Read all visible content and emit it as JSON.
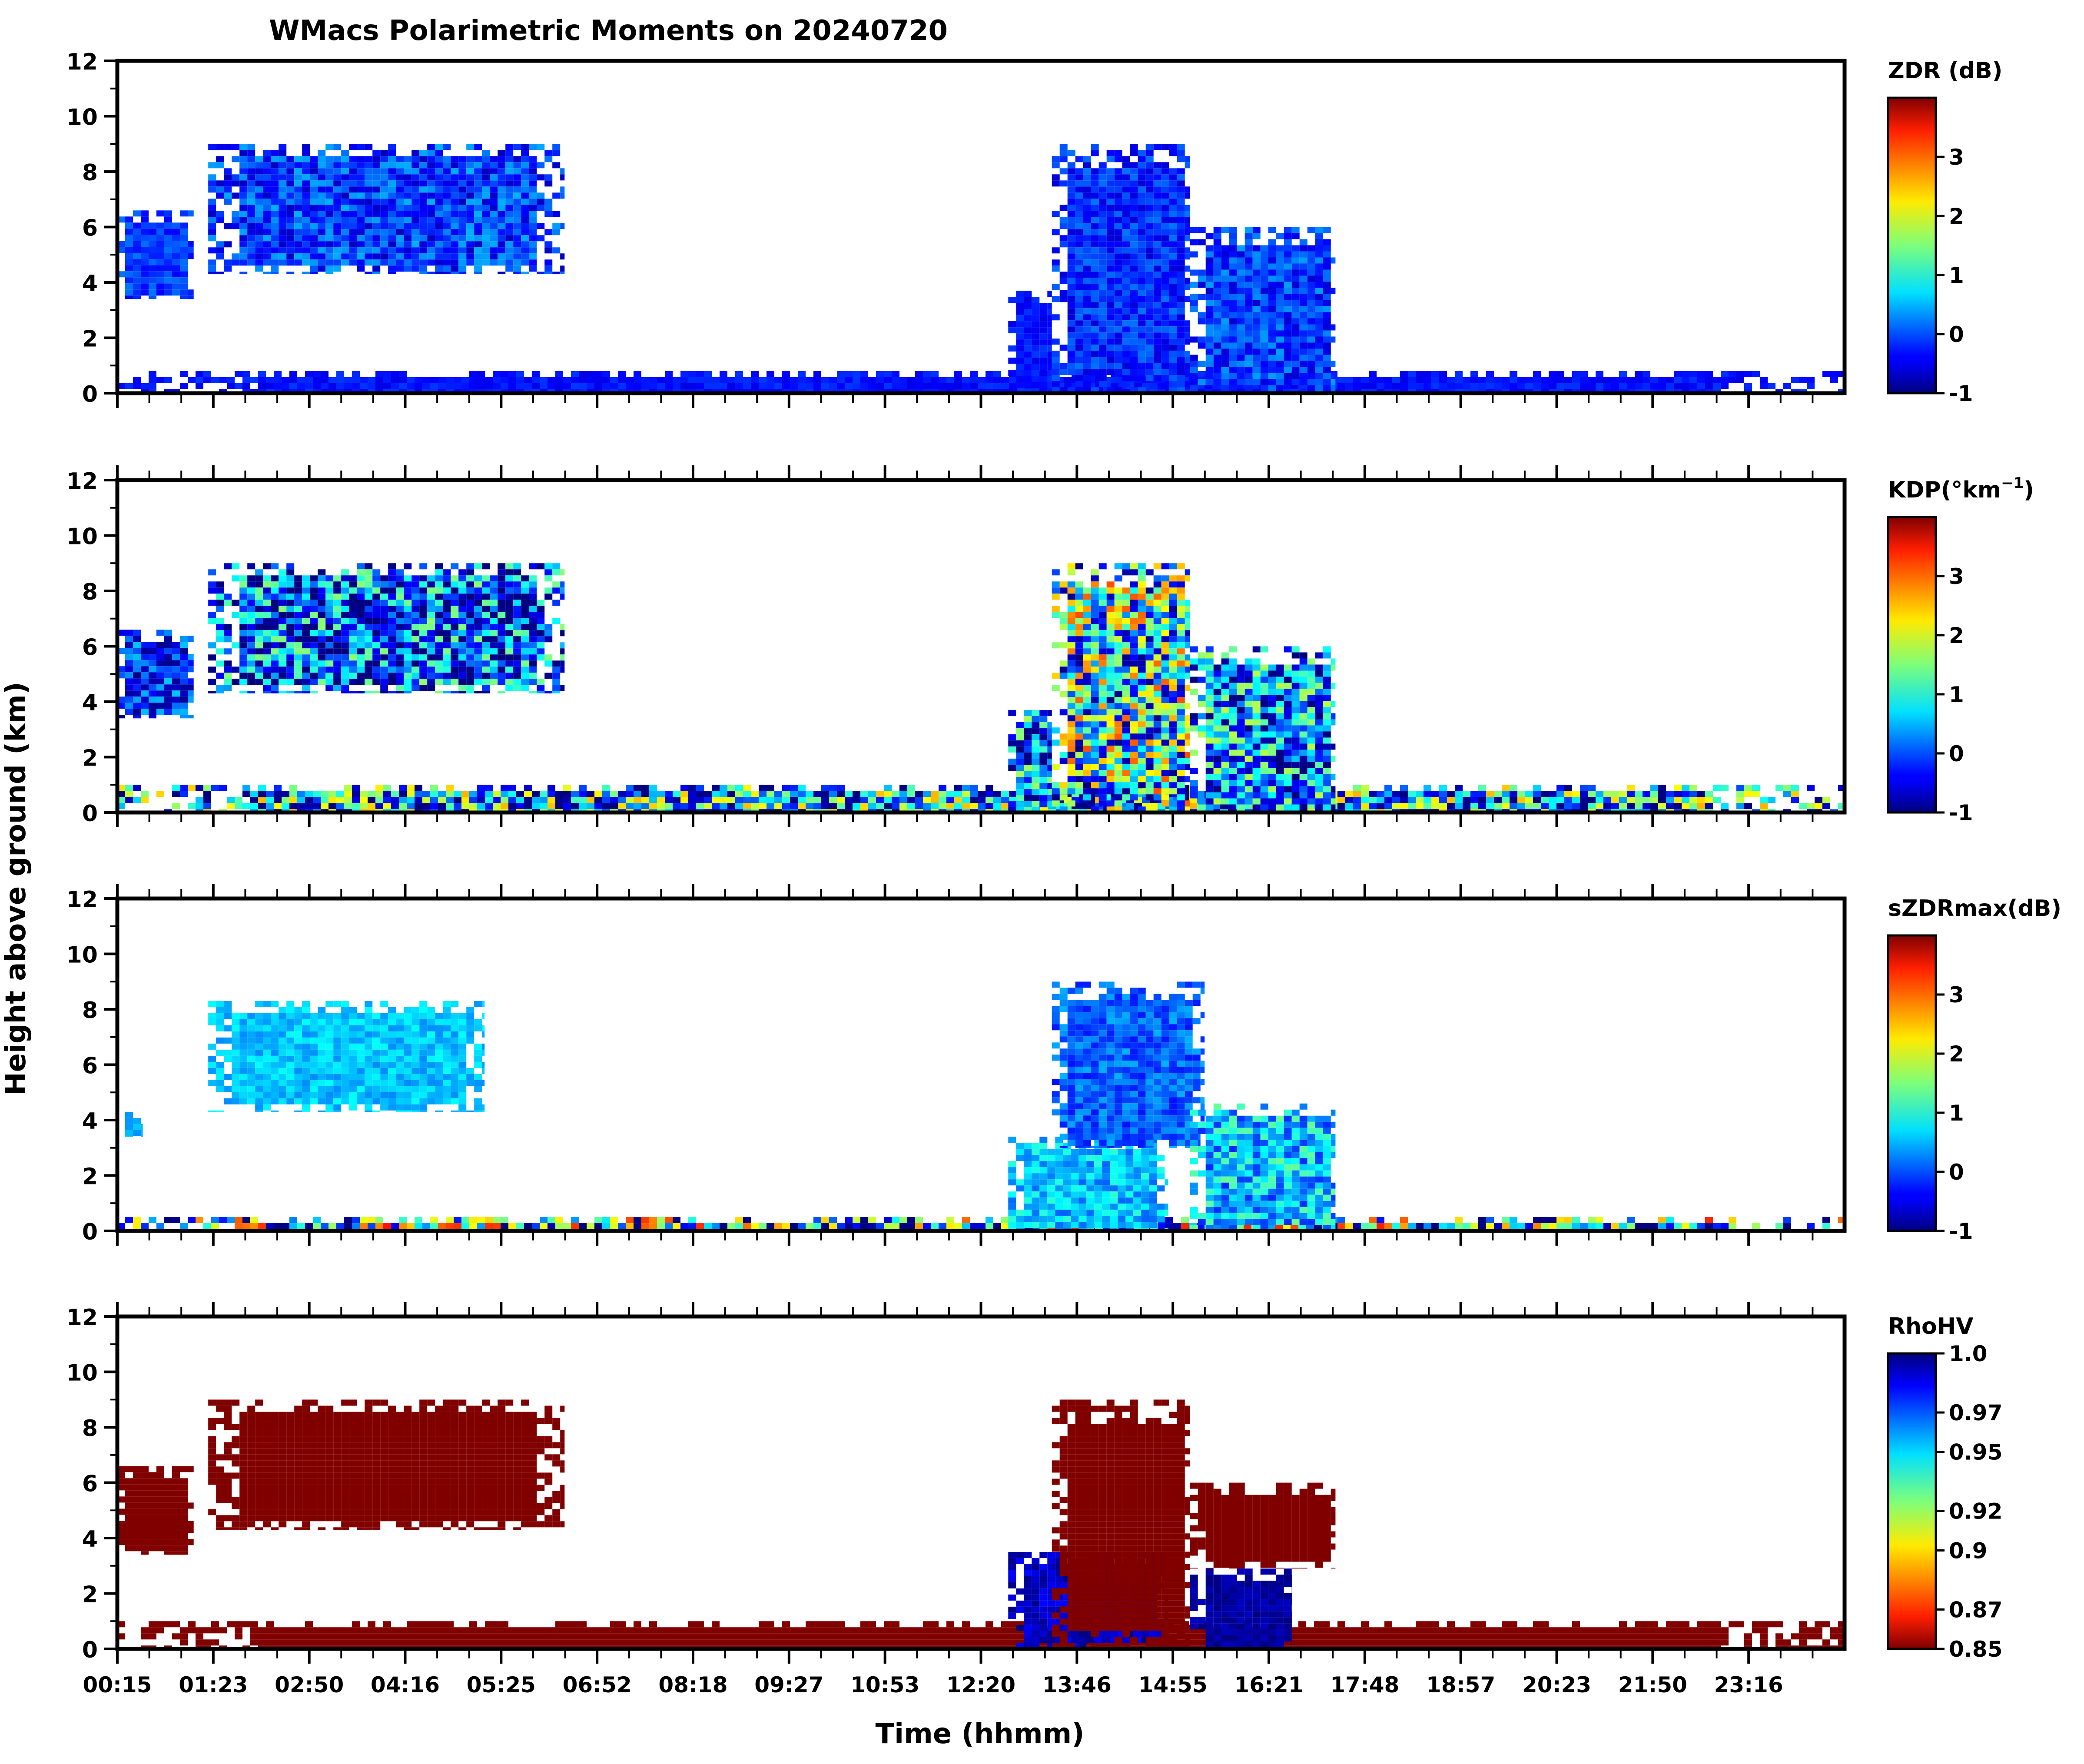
{
  "figure": {
    "title": "WMacs Polarimetric Moments on 20240720",
    "xlabel": "Time (hhmm)",
    "ylabel": "Height above ground (km)"
  },
  "chart_data": [
    {
      "type": "heatmap",
      "name": "ZDR",
      "colorbar_label": "ZDR (dB)",
      "colormap": "jet",
      "clim": [
        -1,
        4
      ],
      "colorbar_ticks": [
        "-1",
        "0",
        "1",
        "2",
        "3"
      ],
      "ylim": [
        0,
        12
      ],
      "yticks": [
        "0",
        "2",
        "4",
        "6",
        "8",
        "10",
        "12"
      ],
      "xlim_hours": [
        0.25,
        24.0
      ],
      "xticks": [
        "00:15",
        "01:23",
        "02:50",
        "04:16",
        "05:25",
        "06:52",
        "08:18",
        "09:27",
        "10:53",
        "12:20",
        "13:46",
        "14:55",
        "16:21",
        "17:48",
        "18:57",
        "20:23",
        "21:50",
        "23:16"
      ],
      "echo_regions": [
        {
          "t": [
            0.25,
            1.3
          ],
          "h": [
            3.4,
            6.6
          ],
          "value": -0.1,
          "color_spread": 0.3
        },
        {
          "t": [
            1.5,
            6.4
          ],
          "h": [
            4.3,
            9.0
          ],
          "value": -0.1,
          "color_spread": 0.6
        },
        {
          "t": [
            0.25,
            24.0
          ],
          "h": [
            0.0,
            0.8
          ],
          "value": -0.3,
          "color_spread": 0.2
        },
        {
          "t": [
            12.5,
            13.1
          ],
          "h": [
            0.0,
            3.7
          ],
          "value": -0.3,
          "color_spread": 0.2
        },
        {
          "t": [
            13.1,
            15.0
          ],
          "h": [
            0.0,
            9.0
          ],
          "value": -0.2,
          "color_spread": 0.4
        },
        {
          "t": [
            15.0,
            17.0
          ],
          "h": [
            0.0,
            6.0
          ],
          "value": -0.1,
          "color_spread": 0.5
        }
      ]
    },
    {
      "type": "heatmap",
      "name": "KDP",
      "colorbar_label": "KDP(°km",
      "colorbar_label_sup": "−1",
      "colorbar_label_end": ")",
      "colormap": "jet",
      "clim": [
        -1,
        4
      ],
      "colorbar_ticks": [
        "-1",
        "0",
        "1",
        "2",
        "3"
      ],
      "ylim": [
        0,
        12
      ],
      "yticks": [
        "0",
        "2",
        "4",
        "6",
        "8",
        "10",
        "12"
      ],
      "xlim_hours": [
        0.25,
        24.0
      ],
      "xticks": [
        "00:15",
        "01:23",
        "02:50",
        "04:16",
        "05:25",
        "06:52",
        "08:18",
        "09:27",
        "10:53",
        "12:20",
        "13:46",
        "14:55",
        "16:21",
        "17:48",
        "18:57",
        "20:23",
        "21:50",
        "23:16"
      ],
      "echo_regions": [
        {
          "t": [
            0.25,
            1.3
          ],
          "h": [
            3.4,
            6.6
          ],
          "value": -0.2,
          "color_spread": 0.8
        },
        {
          "t": [
            1.5,
            6.4
          ],
          "h": [
            4.3,
            9.0
          ],
          "value": 0.0,
          "color_spread": 1.6
        },
        {
          "t": [
            0.25,
            24.0
          ],
          "h": [
            0.0,
            1.0
          ],
          "value": 0.5,
          "color_spread": 2.0
        },
        {
          "t": [
            12.5,
            13.1
          ],
          "h": [
            0.0,
            3.7
          ],
          "value": 0.2,
          "color_spread": 1.5
        },
        {
          "t": [
            13.1,
            15.0
          ],
          "h": [
            0.0,
            9.0
          ],
          "value": 1.0,
          "color_spread": 2.0
        },
        {
          "t": [
            15.0,
            17.0
          ],
          "h": [
            0.0,
            6.0
          ],
          "value": 0.3,
          "color_spread": 1.5
        }
      ]
    },
    {
      "type": "heatmap",
      "name": "sZDRmax",
      "colorbar_label": "sZDRmax(dB)",
      "colormap": "jet",
      "clim": [
        -1,
        4
      ],
      "colorbar_ticks": [
        "-1",
        "0",
        "1",
        "2",
        "3"
      ],
      "ylim": [
        0,
        12
      ],
      "yticks": [
        "0",
        "2",
        "4",
        "6",
        "8",
        "10",
        "12"
      ],
      "xlim_hours": [
        0.25,
        24.0
      ],
      "xticks": [
        "00:15",
        "01:23",
        "02:50",
        "04:16",
        "05:25",
        "06:52",
        "08:18",
        "09:27",
        "10:53",
        "12:20",
        "13:46",
        "14:55",
        "16:21",
        "17:48",
        "18:57",
        "20:23",
        "21:50",
        "23:16"
      ],
      "echo_regions": [
        {
          "t": [
            0.25,
            0.6
          ],
          "h": [
            3.4,
            4.3
          ],
          "value": 0.5,
          "color_spread": 0.2
        },
        {
          "t": [
            1.5,
            5.3
          ],
          "h": [
            4.3,
            8.3
          ],
          "value": 0.6,
          "color_spread": 0.3
        },
        {
          "t": [
            0.25,
            24.0
          ],
          "h": [
            0.0,
            0.5
          ],
          "value": 0.8,
          "color_spread": 2.5
        },
        {
          "t": [
            12.5,
            14.7
          ],
          "h": [
            0.0,
            3.4
          ],
          "value": 0.6,
          "color_spread": 0.5
        },
        {
          "t": [
            13.1,
            15.2
          ],
          "h": [
            3.0,
            9.0
          ],
          "value": 0.1,
          "color_spread": 0.4
        },
        {
          "t": [
            15.0,
            17.0
          ],
          "h": [
            0.0,
            4.6
          ],
          "value": 0.6,
          "color_spread": 0.8
        }
      ]
    },
    {
      "type": "heatmap",
      "name": "RhoHV",
      "colorbar_label": "RhoHV",
      "colormap": "jet_r",
      "clim": [
        0.85,
        1.0
      ],
      "colorbar_ticks": [
        "0.85",
        "0.87",
        "0.9",
        "0.92",
        "0.95",
        "0.97",
        "1.0"
      ],
      "ylim": [
        0,
        12
      ],
      "yticks": [
        "0",
        "2",
        "4",
        "6",
        "8",
        "10",
        "12"
      ],
      "xlim_hours": [
        0.25,
        24.0
      ],
      "xticks": [
        "00:15",
        "01:23",
        "02:50",
        "04:16",
        "05:25",
        "06:52",
        "08:18",
        "09:27",
        "10:53",
        "12:20",
        "13:46",
        "14:55",
        "16:21",
        "17:48",
        "18:57",
        "20:23",
        "21:50",
        "23:16"
      ],
      "echo_regions": [
        {
          "t": [
            0.25,
            1.3
          ],
          "h": [
            3.4,
            6.6
          ],
          "value": 0.85,
          "color_spread": 0.0
        },
        {
          "t": [
            1.5,
            6.4
          ],
          "h": [
            4.3,
            9.0
          ],
          "value": 0.85,
          "color_spread": 0.0
        },
        {
          "t": [
            0.25,
            24.0
          ],
          "h": [
            0.0,
            1.0
          ],
          "value": 0.85,
          "color_spread": 0.0
        },
        {
          "t": [
            12.5,
            14.7
          ],
          "h": [
            0.0,
            3.5
          ],
          "value": 0.99,
          "color_spread": 0.01
        },
        {
          "t": [
            13.1,
            15.0
          ],
          "h": [
            0.0,
            9.0
          ],
          "value": 0.85,
          "color_spread": 0.0
        },
        {
          "t": [
            15.0,
            16.4
          ],
          "h": [
            0.0,
            2.9
          ],
          "value": 0.995,
          "color_spread": 0.005
        },
        {
          "t": [
            15.0,
            17.0
          ],
          "h": [
            2.9,
            6.0
          ],
          "value": 0.85,
          "color_spread": 0.0
        }
      ]
    }
  ]
}
